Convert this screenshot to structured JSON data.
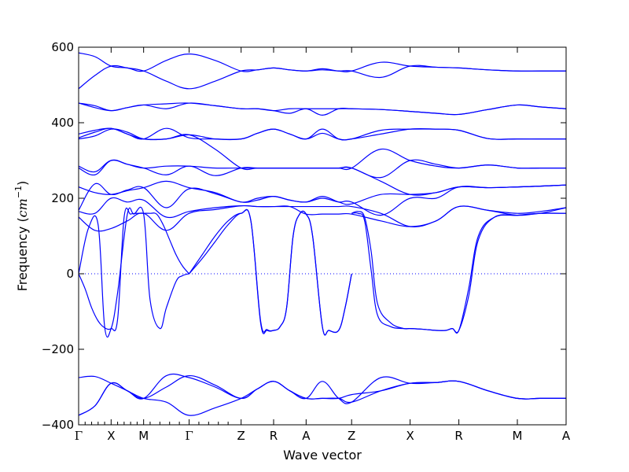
{
  "chart_data": {
    "type": "line",
    "title": "",
    "xlabel": "Wave vector",
    "ylabel_prefix": "Frequency (",
    "ylabel_unit_main": "cm",
    "ylabel_unit_exp": "−1",
    "ylabel_suffix": ")",
    "ylim": [
      -400,
      600
    ],
    "yticks": [
      -400,
      -200,
      0,
      200,
      400,
      600
    ],
    "ytick_labels": [
      "−400",
      "−200",
      "0",
      "200",
      "400",
      "600"
    ],
    "zero_line": true,
    "grid": false,
    "legend": "none",
    "line_color": "#0000ff",
    "zero_line_color": "#0000ff",
    "xlim": [
      0,
      15
    ],
    "high_symmetry_points": [
      {
        "label": "Γ",
        "x": 0.0
      },
      {
        "label": "X",
        "x": 1.0
      },
      {
        "label": "M",
        "x": 2.0
      },
      {
        "label": "Γ",
        "x": 3.4
      },
      {
        "label": "Z",
        "x": 5.0
      },
      {
        "label": "R",
        "x": 6.0
      },
      {
        "label": "A",
        "x": 7.0
      },
      {
        "label": "Z",
        "x": 8.4
      },
      {
        "label": "X",
        "x": 10.2
      },
      {
        "label": "R",
        "x": 11.7
      },
      {
        "label": "M",
        "x": 13.5
      },
      {
        "label": "A",
        "x": 15.0
      }
    ],
    "minor_ticks_x": [
      0.2,
      0.4,
      0.6,
      0.8,
      1.2,
      1.4,
      1.6,
      1.8,
      2.2,
      2.5,
      2.8,
      3.1,
      3.7,
      4.0,
      4.3,
      4.6
    ],
    "segments_endpoints": [
      [
        [
          585,
          490
        ],
        [
          550,
          550
        ]
      ],
      [
        [
          550,
          550
        ],
        [
          537,
          537
        ]
      ],
      [
        [
          537,
          537
        ],
        [
          490,
          582
        ]
      ],
      [
        [
          490,
          582
        ],
        [
          537,
          537
        ]
      ],
      [
        [
          537,
          537
        ],
        [
          545,
          545
        ]
      ],
      [
        [
          545,
          545
        ],
        [
          537,
          537
        ]
      ],
      [
        [
          537,
          537
        ],
        [
          537,
          537
        ]
      ],
      [
        [
          537,
          537
        ],
        [
          550,
          550
        ]
      ],
      [
        [
          550,
          550
        ],
        [
          545,
          545
        ]
      ],
      [
        [
          545,
          545
        ],
        [
          537,
          537
        ]
      ],
      [
        [
          537,
          537
        ],
        [
          537,
          537
        ]
      ]
    ],
    "series": [
      {
        "x": [
          0,
          0.5,
          1,
          1.5,
          2,
          2.7,
          3.4,
          4.2,
          5,
          5.5,
          6,
          6.5,
          7,
          7.5,
          8,
          8.4,
          9.3,
          10.2,
          11,
          11.7,
          12.6,
          13.5,
          14.2,
          15
        ],
        "y": [
          585,
          575,
          550,
          545,
          537,
          565,
          582,
          565,
          537,
          540,
          545,
          540,
          537,
          543,
          537,
          537,
          560,
          550,
          547,
          545,
          540,
          537,
          537,
          537
        ]
      },
      {
        "x": [
          0,
          0.5,
          1,
          1.5,
          2,
          2.7,
          3.4,
          4.2,
          5,
          5.5,
          6,
          6.5,
          7,
          7.5,
          8,
          8.4,
          9.3,
          10.2,
          11,
          11.7,
          12.6,
          13.5,
          14.2,
          15
        ],
        "y": [
          490,
          525,
          550,
          545,
          537,
          510,
          490,
          510,
          537,
          540,
          545,
          540,
          537,
          540,
          537,
          537,
          520,
          550,
          547,
          545,
          540,
          537,
          537,
          537
        ]
      },
      {
        "x": [
          0,
          0.5,
          1,
          1.5,
          2,
          2.7,
          3.4,
          4.2,
          5,
          5.5,
          6,
          6.5,
          7,
          7.5,
          8,
          8.4,
          9.3,
          10.2,
          11,
          11.7,
          12.6,
          13.5,
          14.2,
          15
        ],
        "y": [
          452,
          445,
          432,
          440,
          447,
          450,
          452,
          445,
          437,
          437,
          432,
          437,
          437,
          437,
          437,
          437,
          435,
          430,
          425,
          422,
          435,
          447,
          442,
          437
        ]
      },
      {
        "x": [
          0,
          0.5,
          1,
          1.5,
          2,
          2.7,
          3.4,
          4.2,
          5,
          5.5,
          6,
          6.5,
          7,
          7.5,
          8,
          8.4,
          9.3,
          10.2,
          11,
          11.7,
          12.6,
          13.5,
          14.2,
          15
        ],
        "y": [
          452,
          440,
          432,
          440,
          447,
          437,
          452,
          445,
          437,
          437,
          432,
          425,
          437,
          420,
          437,
          437,
          435,
          430,
          425,
          422,
          435,
          447,
          442,
          437
        ]
      },
      {
        "x": [
          0,
          0.5,
          1,
          1.5,
          2,
          2.7,
          3.4,
          4.2,
          5,
          5.5,
          6,
          6.5,
          7,
          7.5,
          8,
          8.4,
          9.3,
          10.2,
          11,
          11.7,
          12.6,
          13.5,
          14.2,
          15
        ],
        "y": [
          370,
          380,
          385,
          370,
          357,
          385,
          360,
          357,
          357,
          372,
          383,
          370,
          357,
          383,
          357,
          357,
          370,
          383,
          383,
          380,
          358,
          357,
          357,
          357
        ]
      },
      {
        "x": [
          0,
          0.5,
          1,
          1.5,
          2,
          2.7,
          3.4,
          4.2,
          5,
          5.5,
          6,
          6.5,
          7,
          7.5,
          8,
          8.4,
          9.3,
          10.2,
          11,
          11.7,
          12.6,
          13.5,
          14.2,
          15
        ],
        "y": [
          360,
          375,
          385,
          370,
          357,
          357,
          368,
          357,
          357,
          372,
          383,
          370,
          357,
          372,
          357,
          357,
          380,
          383,
          383,
          380,
          358,
          357,
          357,
          357
        ]
      },
      {
        "x": [
          0,
          0.5,
          1,
          1.5,
          2,
          2.7,
          3.4,
          4.2,
          5,
          5.5,
          6,
          6.5,
          7,
          7.5,
          8,
          8.4,
          9.3,
          10.2,
          11,
          11.7,
          12.6,
          13.5,
          14.2,
          15
        ],
        "y": [
          357,
          365,
          383,
          375,
          357,
          357,
          368,
          330,
          280,
          280,
          280,
          280,
          280,
          280,
          280,
          280,
          330,
          300,
          285,
          280,
          288,
          280,
          280,
          280
        ]
      },
      {
        "x": [
          0,
          0.5,
          1,
          1.5,
          2,
          2.7,
          3.4,
          4.2,
          5,
          5.5,
          6,
          6.5,
          7,
          7.5,
          8,
          8.4,
          9.3,
          10.2,
          11,
          11.7,
          12.6,
          13.5,
          14.2,
          15
        ],
        "y": [
          285,
          270,
          300,
          290,
          280,
          262,
          285,
          260,
          280,
          280,
          280,
          280,
          280,
          280,
          280,
          280,
          255,
          300,
          290,
          280,
          288,
          280,
          280,
          280
        ]
      },
      {
        "x": [
          0,
          0.5,
          1,
          1.5,
          2,
          2.7,
          3.4,
          4.2,
          5,
          5.5,
          6,
          6.5,
          7,
          7.5,
          8,
          8.4,
          9.3,
          10.2,
          11,
          11.7,
          12.6,
          13.5,
          14.2,
          15
        ],
        "y": [
          280,
          262,
          300,
          290,
          280,
          285,
          285,
          280,
          280,
          280,
          280,
          280,
          280,
          280,
          280,
          280,
          245,
          210,
          215,
          230,
          228,
          230,
          232,
          235
        ]
      },
      {
        "x": [
          0,
          0.5,
          1,
          1.5,
          2,
          2.7,
          3.4,
          4.2,
          5,
          5.5,
          6,
          6.5,
          7,
          7.5,
          8,
          8.4,
          9.3,
          10.2,
          11,
          11.7,
          12.6,
          13.5,
          14.2,
          15
        ],
        "y": [
          230,
          215,
          210,
          220,
          228,
          245,
          228,
          215,
          190,
          200,
          205,
          195,
          190,
          205,
          190,
          185,
          210,
          210,
          215,
          230,
          228,
          230,
          232,
          235
        ]
      },
      {
        "x": [
          0,
          0.5,
          1,
          1.5,
          2,
          2.7,
          3.4,
          4.2,
          5,
          5.5,
          6,
          6.5,
          7,
          7.5,
          8,
          8.4,
          9.3,
          10.2,
          11,
          11.7,
          12.6,
          13.5,
          14.2,
          15
        ],
        "y": [
          168,
          238,
          210,
          222,
          228,
          175,
          225,
          212,
          190,
          195,
          205,
          195,
          190,
          200,
          190,
          190,
          155,
          200,
          200,
          230,
          228,
          230,
          232,
          235
        ]
      },
      {
        "x": [
          0,
          0.5,
          1,
          1.5,
          2,
          2.7,
          3.4,
          4.2,
          5,
          5.5,
          6,
          6.5,
          7,
          7.5,
          8,
          8.4,
          9.3,
          10.2,
          11,
          11.7,
          12.6,
          13.5,
          14.2,
          15
        ],
        "y": [
          165,
          160,
          200,
          190,
          195,
          150,
          165,
          175,
          180,
          178,
          178,
          178,
          178,
          178,
          178,
          178,
          160,
          125,
          140,
          178,
          168,
          160,
          165,
          175
        ]
      },
      {
        "x": [
          0,
          0.5,
          1,
          1.5,
          2,
          2.7,
          3.4,
          4.2,
          5,
          5.5,
          6,
          6.5,
          7,
          7.5,
          8,
          8.4,
          9.3,
          10.2,
          11,
          11.7,
          12.6,
          13.5,
          14.2,
          15
        ],
        "y": [
          150,
          115,
          120,
          140,
          160,
          115,
          160,
          170,
          180,
          178,
          178,
          178,
          158,
          158,
          158,
          158,
          140,
          125,
          140,
          178,
          168,
          155,
          160,
          160
        ]
      },
      {
        "x": [
          0,
          0.3,
          0.6,
          0.8,
          1,
          1.2,
          1.5,
          1.7,
          2,
          2.2,
          2.5,
          2.7,
          3,
          3.2,
          3.4
        ],
        "y": [
          0,
          120,
          130,
          -140,
          -145,
          -50,
          158,
          158,
          158,
          -70,
          -145,
          -90,
          -20,
          -5,
          0
        ]
      },
      {
        "x": [
          0,
          0.2,
          0.4,
          0.6,
          0.8,
          1,
          1.2,
          1.4,
          1.6,
          1.8,
          2,
          2.2,
          2.4,
          2.6,
          2.8,
          3,
          3.2,
          3.4
        ],
        "y": [
          0,
          -40,
          -90,
          -125,
          -143,
          -145,
          -120,
          150,
          158,
          160,
          160,
          160,
          158,
          130,
          90,
          50,
          20,
          0
        ]
      },
      {
        "x": [
          3.4,
          3.8,
          4.2,
          4.6,
          5,
          5.3,
          5.6,
          5.8,
          6,
          6.2,
          6.4,
          6.6,
          6.8,
          7,
          7.2,
          7.5,
          7.7,
          8,
          8.2,
          8.4
        ],
        "y": [
          0,
          50,
          100,
          140,
          160,
          140,
          -130,
          -150,
          -150,
          -140,
          -90,
          100,
          158,
          158,
          100,
          -140,
          -150,
          -150,
          -90,
          0
        ]
      },
      {
        "x": [
          3.4,
          3.8,
          4.2,
          4.6,
          5,
          5.3,
          5.6,
          5.8,
          6,
          6.2,
          6.4,
          6.6,
          6.8,
          7,
          7.2,
          7.5,
          7.7,
          8,
          8.2,
          8.4
        ],
        "y": [
          0,
          40,
          85,
          130,
          160,
          140,
          -125,
          -148,
          -150,
          -140,
          -90,
          100,
          158,
          158,
          100,
          -140,
          -150,
          -150,
          -90,
          0
        ]
      },
      {
        "x": [
          8.4,
          8.6,
          8.8,
          9,
          9.2,
          9.6,
          10,
          10.2,
          10.6,
          11,
          11.3,
          11.5,
          11.7,
          12,
          12.3,
          12.8,
          13.5,
          14.2,
          15
        ],
        "y": [
          160,
          165,
          150,
          60,
          -80,
          -130,
          -145,
          -145,
          -147,
          -150,
          -150,
          -145,
          -150,
          -60,
          90,
          150,
          155,
          160,
          160
        ]
      },
      {
        "x": [
          8.4,
          8.6,
          8.8,
          9,
          9.2,
          9.6,
          10,
          10.2,
          10.6,
          11,
          11.3,
          11.5,
          11.7,
          12,
          12.3,
          12.8,
          13.5,
          14.2,
          15
        ],
        "y": [
          160,
          160,
          140,
          10,
          -110,
          -140,
          -145,
          -145,
          -147,
          -150,
          -150,
          -145,
          -150,
          -40,
          100,
          150,
          155,
          160,
          175
        ]
      },
      {
        "x": [
          0,
          0.5,
          1,
          1.5,
          2,
          2.7,
          3.4,
          4.2,
          5,
          5.5,
          6,
          6.5,
          7,
          7.5,
          8,
          8.4,
          9.3,
          10.2,
          11,
          11.7,
          12.6,
          13.5,
          14.2,
          15
        ],
        "y": [
          -375,
          -350,
          -290,
          -310,
          -330,
          -300,
          -270,
          -295,
          -330,
          -305,
          -285,
          -310,
          -330,
          -330,
          -330,
          -340,
          -310,
          -290,
          -288,
          -285,
          -310,
          -330,
          -330,
          -330
        ]
      },
      {
        "x": [
          0,
          0.5,
          1,
          1.5,
          2,
          2.7,
          3.4,
          4.2,
          5,
          5.5,
          6,
          6.5,
          7,
          7.5,
          8,
          8.4,
          9.3,
          10.2,
          11,
          11.7,
          12.6,
          13.5,
          14.2,
          15
        ],
        "y": [
          -275,
          -272,
          -290,
          -310,
          -330,
          -270,
          -275,
          -300,
          -330,
          -305,
          -285,
          -310,
          -330,
          -285,
          -330,
          -340,
          -275,
          -290,
          -288,
          -285,
          -310,
          -330,
          -330,
          -330
        ]
      },
      {
        "x": [
          0,
          0.5,
          1,
          1.5,
          2,
          2.7,
          3.4,
          4.2,
          5,
          5.5,
          6,
          6.5,
          7,
          7.5,
          8,
          8.4,
          9.3,
          10.2,
          11,
          11.7,
          12.6,
          13.5,
          14.2,
          15
        ],
        "y": [
          -375,
          -350,
          -290,
          -310,
          -330,
          -340,
          -375,
          -355,
          -330,
          -305,
          -285,
          -310,
          -330,
          -330,
          -330,
          -320,
          -310,
          -290,
          -288,
          -285,
          -310,
          -330,
          -330,
          -330
        ]
      }
    ]
  }
}
